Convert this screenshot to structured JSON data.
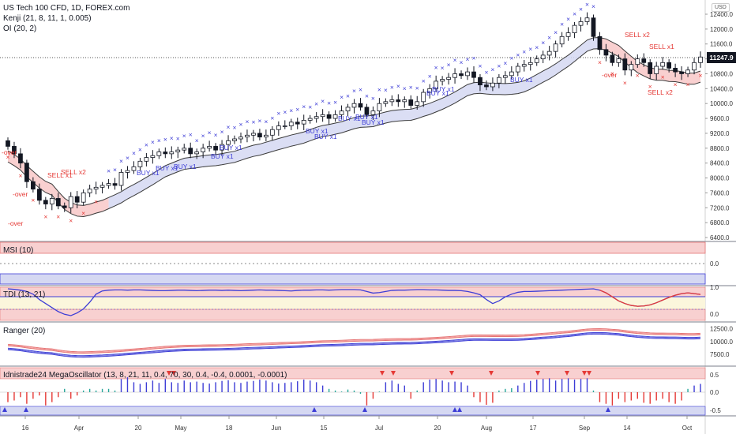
{
  "header": {
    "symbol_line": "US Tech 100 CFD, 1D, FOREX.com",
    "indicator1": "Kenji (21, 8, 11, 1, 0.005)",
    "indicator2": "OI (20, 2)",
    "currency": "USD",
    "last_price": "11247.9"
  },
  "panes": {
    "msi": "MSI (10)",
    "tdi": "TDI (13, 21)",
    "ranger": "Ranger (20)",
    "mega": "Idnistrade24 MegaOscillator (13, 8, 21, 11, 0.4, 70, 30, 0.4, -0.4, 0.0001, -0.0001)"
  },
  "colors": {
    "up": "#ffffff",
    "down": "#131722",
    "cross": "#3d3dd6",
    "cross_red": "#e53935",
    "ribbon_blue": "#d5d8f2",
    "ribbon_red": "#f8c8c8",
    "histogram_blue": "#3d3dd6",
    "histogram_red": "#e53935",
    "histogram_green": "#26a69a"
  },
  "chart_data": {
    "type": "candlestick",
    "price_axis": {
      "ticks": [
        "12400.0",
        "12000.0",
        "11600.0",
        "11200.0",
        "10800.0",
        "10400.0",
        "10000.0",
        "9600.0",
        "9200.0",
        "8800.0",
        "8400.0",
        "8000.0",
        "7600.0",
        "7200.0",
        "6800.0",
        "6400.0"
      ],
      "range": [
        6400,
        12400
      ]
    },
    "x_ticks": [
      "16",
      "Apr",
      "20",
      "May",
      "18",
      "Jun",
      "15",
      "Jul",
      "20",
      "Aug",
      "17",
      "Sep",
      "14",
      "Oct"
    ],
    "closes": [
      8850,
      8650,
      8400,
      7900,
      7700,
      7400,
      7300,
      7450,
      7250,
      7200,
      7500,
      7350,
      7600,
      7700,
      7750,
      7800,
      7850,
      7800,
      8150,
      8200,
      8300,
      8450,
      8550,
      8600,
      8700,
      8650,
      8700,
      8750,
      8800,
      8650,
      8700,
      8800,
      8850,
      8750,
      8900,
      9000,
      9050,
      9100,
      9150,
      9200,
      9100,
      9150,
      9300,
      9400,
      9400,
      9500,
      9450,
      9550,
      9600,
      9650,
      9700,
      9600,
      9700,
      9800,
      9900,
      10000,
      9900,
      9700,
      9800,
      10000,
      10050,
      10100,
      10050,
      10100,
      9950,
      10050,
      10300,
      10400,
      10600,
      10650,
      10700,
      10800,
      10750,
      10850,
      10700,
      10500,
      10450,
      10550,
      10700,
      10750,
      10850,
      11000,
      11050,
      11100,
      11200,
      11300,
      11400,
      11600,
      11800,
      11900,
      12100,
      12200,
      12300,
      11800,
      11450,
      11300,
      11100,
      11200,
      10900,
      11050,
      11200,
      11100,
      10800,
      11000,
      11100,
      10950,
      10850,
      10800,
      10900,
      11100,
      11250
    ],
    "buy_signals": [
      "BUY x1",
      "BUY x1",
      "BUY x1",
      "BUY x1",
      "BUY x1",
      "BUY x1",
      "BUY x1",
      "BUY x1",
      "BUY x1",
      "BUY x1",
      "BUY x1",
      "BUY x1",
      "BUY x1"
    ],
    "sell_signals": [
      "SELL x2",
      "SELL x1",
      "SELL x2",
      "SELL x1",
      "SELL x2"
    ],
    "over_labels": [
      "-over",
      "-over",
      "-over",
      "-over"
    ],
    "msi_ticks": [
      "0.0"
    ],
    "tdi_ticks": [
      "1.0",
      "0.0"
    ],
    "ranger_ticks": [
      "12500.0",
      "10000.0",
      "7500.0"
    ],
    "mega_ticks": [
      "0.5",
      "0.0",
      "-0.5"
    ],
    "tdi_values": [
      1.0,
      0.98,
      0.95,
      0.9,
      0.8,
      0.6,
      0.45,
      0.3,
      0.15,
      0.05,
      0.0,
      0.1,
      0.25,
      0.5,
      0.8,
      0.92,
      0.95,
      0.96,
      0.96,
      0.95,
      0.96,
      0.96,
      0.95,
      0.94,
      0.93,
      0.93,
      0.94,
      0.95,
      0.95,
      0.94,
      0.93,
      0.94,
      0.95,
      0.95,
      0.94,
      0.95,
      0.94,
      0.93,
      0.94,
      0.95,
      0.96,
      0.95,
      0.95,
      0.94,
      0.93,
      0.92,
      0.94,
      0.95,
      0.95,
      0.96,
      0.96,
      0.95,
      0.96,
      0.97,
      0.97,
      0.97,
      0.96,
      0.9,
      0.84,
      0.86,
      0.9,
      0.94,
      0.95,
      0.95,
      0.96,
      0.97,
      0.97,
      0.96,
      0.96,
      0.95,
      0.94,
      0.94,
      0.93,
      0.9,
      0.85,
      0.78,
      0.6,
      0.45,
      0.55,
      0.7,
      0.8,
      0.87,
      0.9,
      0.9,
      0.91,
      0.92,
      0.93,
      0.94,
      0.95,
      0.96,
      0.97,
      0.98,
      0.99,
      1.0,
      0.95,
      0.85,
      0.7,
      0.55,
      0.45,
      0.38,
      0.35,
      0.36,
      0.4,
      0.48,
      0.58,
      0.68,
      0.76,
      0.82,
      0.85,
      0.82,
      0.79
    ],
    "mega_values": [
      -0.3,
      -0.25,
      -0.15,
      -0.35,
      -0.2,
      -0.1,
      -0.4,
      -0.3,
      -0.15,
      0.1,
      -0.2,
      -0.1,
      0.05,
      0.1,
      0.05,
      0.1,
      0.1,
      0.05,
      0.4,
      0.45,
      0.3,
      0.25,
      0.3,
      0.35,
      0.28,
      0.4,
      0.3,
      0.28,
      0.35,
      0.3,
      0.32,
      0.28,
      0.26,
      0.3,
      0.34,
      0.36,
      0.3,
      0.28,
      0.32,
      0.34,
      0.38,
      0.35,
      0.3,
      0.26,
      0.28,
      0.3,
      0.33,
      0.38,
      0.35,
      0.3,
      0.2,
      0.1,
      0.05,
      0.02,
      0.08,
      0.05,
      -0.05,
      -0.4,
      -0.2,
      0.02,
      0.3,
      0.35,
      0.25,
      0.2,
      -0.2,
      0.05,
      0.3,
      0.38,
      0.4,
      0.35,
      0.3,
      0.32,
      0.3,
      0.2,
      -0.15,
      -0.3,
      -0.38,
      -0.32,
      0.05,
      0.1,
      0.12,
      0.2,
      0.28,
      0.34,
      0.38,
      0.4,
      0.42,
      0.35,
      0.4,
      0.42,
      0.38,
      0.4,
      0.42,
      0.05,
      -0.3,
      -0.35,
      -0.4,
      -0.2,
      -0.3,
      -0.25,
      -0.2,
      -0.32,
      -0.35,
      -0.25,
      -0.2,
      -0.3,
      -0.35,
      -0.25,
      0.1,
      0.2,
      0.25
    ]
  }
}
